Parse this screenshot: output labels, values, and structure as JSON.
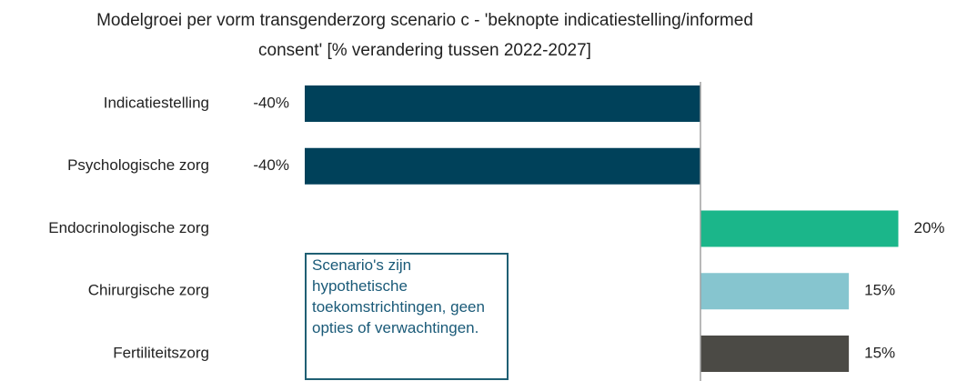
{
  "chart_data": {
    "type": "bar",
    "orientation": "horizontal",
    "title": "Modelgroei per vorm transgenderzorg scenario c - 'beknopte indicatiestelling/informed consent' [% verandering tussen 2022-2027]",
    "categories": [
      "Indicatiestelling",
      "Psychologische zorg",
      "Endocrinologische zorg",
      "Chirurgische zorg",
      "Fertiliteitszorg"
    ],
    "values": [
      -40,
      -40,
      20,
      15,
      15
    ],
    "value_labels": [
      "-40%",
      "-40%",
      "20%",
      "15%",
      "15%"
    ],
    "colors": [
      "#00415a",
      "#00415a",
      "#1bb68a",
      "#86c5cf",
      "#4b4a45"
    ],
    "xlim": [
      -40,
      20
    ],
    "annotation": "Scenario's zijn hypothetische toekomstrichtingen, geen opties of verwachtingen."
  }
}
